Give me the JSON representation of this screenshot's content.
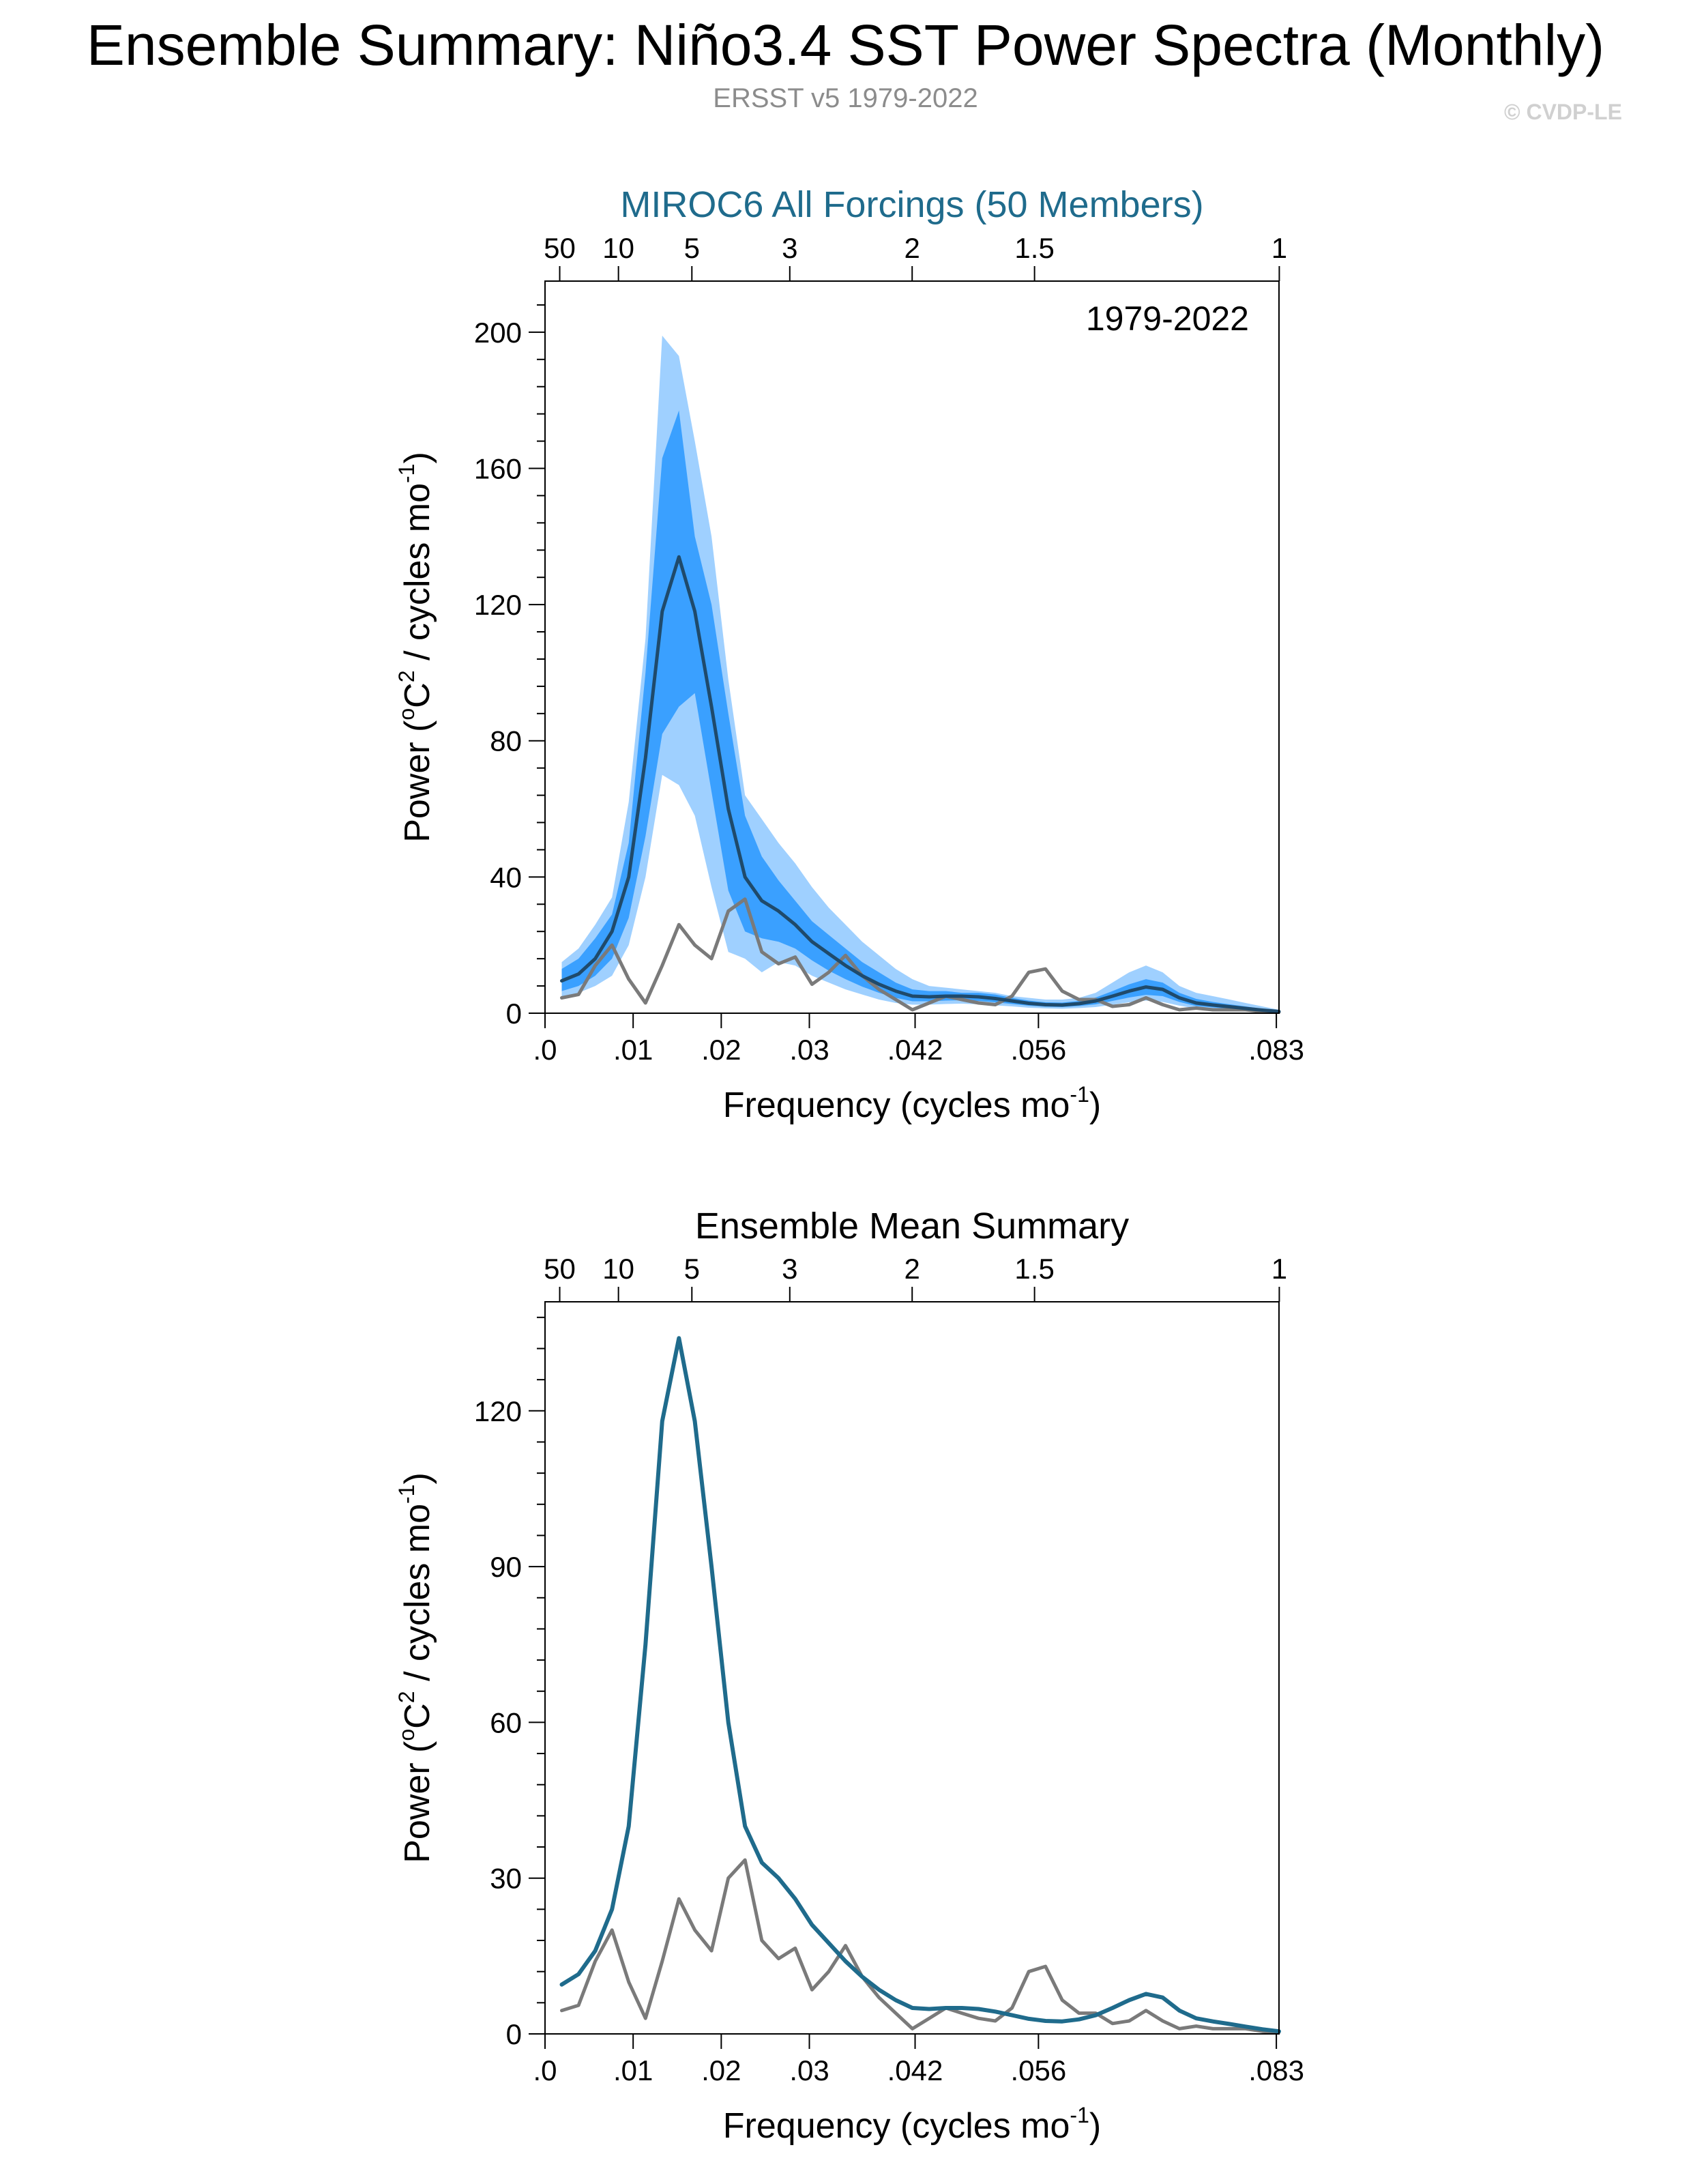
{
  "header": {
    "title": "Ensemble Summary: Niño3.4 SST Power Spectra (Monthly)",
    "subtitle": "ERSST v5 1979-2022",
    "copyright": "© CVDP-LE"
  },
  "colors": {
    "ensemble": "#1f6b8c",
    "observations": "#7a7a7a",
    "outer_band": "#9fd0ff",
    "inner_band": "#3aa0ff",
    "mean_line_panel1": "#1f4a6b"
  },
  "chart_data": [
    {
      "type": "line",
      "title": "MIROC6 All Forcings (50 Members)",
      "annotation": "1979-2022",
      "xlabel": "Frequency (cycles mo",
      "xlabel_sup": "-1",
      "xlabel_end": ")",
      "ylabel": "Power (",
      "ylabel_sup1": "o",
      "ylabel_mid": "C",
      "ylabel_sup2": "2",
      "ylabel_mid2": " / cycles mo",
      "ylabel_sup3": "-1",
      "ylabel_end": ")",
      "xlim": [
        0,
        0.0833
      ],
      "ylim": [
        0,
        215
      ],
      "yticks": [
        0,
        40,
        80,
        120,
        160,
        200
      ],
      "ytick_labels": [
        "0",
        "40",
        "80",
        "120",
        "160",
        "200"
      ],
      "xticks": [
        0,
        0.01,
        0.02,
        0.03,
        0.042,
        0.056,
        0.083
      ],
      "xtick_labels": [
        ".0",
        ".01",
        ".02",
        ".03",
        ".042",
        ".056",
        ".083"
      ],
      "top_period_labels": [
        "50",
        "10",
        "5",
        "3",
        "2",
        "1.5",
        "1"
      ],
      "top_period_years": [
        50,
        10,
        5,
        3,
        2,
        1.5,
        1
      ],
      "x": [
        0.0019,
        0.0038,
        0.0057,
        0.0076,
        0.0095,
        0.0114,
        0.0133,
        0.0152,
        0.017,
        0.0189,
        0.0208,
        0.0227,
        0.0246,
        0.0265,
        0.0284,
        0.0303,
        0.0322,
        0.0341,
        0.036,
        0.0379,
        0.0398,
        0.0417,
        0.0436,
        0.0455,
        0.0473,
        0.0492,
        0.0511,
        0.053,
        0.0549,
        0.0568,
        0.0587,
        0.0606,
        0.0625,
        0.0644,
        0.0663,
        0.0682,
        0.0701,
        0.072,
        0.0739,
        0.0758,
        0.0777,
        0.0795,
        0.0814,
        0.0833
      ],
      "series": [
        {
          "name": "ensemble_mean",
          "values": [
            9.5,
            11.5,
            16,
            24,
            40,
            75,
            118,
            134,
            118,
            90,
            60,
            40,
            33,
            30,
            26,
            21,
            17.5,
            14,
            11,
            8.5,
            6.5,
            5,
            4.8,
            5,
            5,
            4.8,
            4.3,
            3.6,
            2.9,
            2.5,
            2.4,
            2.8,
            3.6,
            5,
            6.5,
            7.7,
            7,
            4.5,
            3,
            2.4,
            1.9,
            1.4,
            0.9,
            0.5
          ]
        },
        {
          "name": "observations",
          "values": [
            4.5,
            5.5,
            14,
            20,
            10,
            3,
            14,
            26,
            20,
            16,
            30,
            33.5,
            18,
            14.5,
            16.5,
            8.5,
            12,
            17,
            11,
            7,
            4,
            1,
            3,
            5,
            4,
            3,
            2.5,
            5,
            12,
            13,
            6.5,
            4,
            4,
            2,
            2.5,
            4.5,
            2.5,
            1,
            1.5,
            1,
            1,
            1,
            0.5,
            0.3
          ]
        },
        {
          "name": "outer_upper",
          "values": [
            15,
            19,
            26,
            34,
            62,
            110,
            199,
            193,
            168,
            140,
            98,
            64,
            57,
            50,
            44,
            37,
            31,
            26,
            21,
            17,
            13,
            10,
            8,
            7.5,
            7,
            6.5,
            6,
            5,
            4.5,
            4,
            4,
            4.5,
            6,
            9,
            12,
            14,
            12,
            8,
            6,
            5,
            4,
            3,
            2,
            1
          ]
        },
        {
          "name": "inner_upper",
          "values": [
            13,
            16,
            22,
            29,
            50,
            100,
            163,
            177,
            140,
            120,
            88,
            58,
            46,
            39,
            33,
            27,
            23,
            19,
            15,
            12,
            9,
            7,
            6.5,
            6.5,
            6,
            6,
            5.5,
            4.5,
            3.7,
            3.2,
            3.1,
            3.6,
            4.6,
            6.5,
            8.5,
            10,
            9,
            6,
            4.2,
            3.3,
            2.6,
            2,
            1.3,
            0.7
          ]
        },
        {
          "name": "inner_lower",
          "values": [
            6.5,
            8,
            11,
            16,
            28,
            52,
            82,
            90,
            94,
            65,
            36,
            24,
            22,
            21,
            19,
            15.5,
            12.5,
            10,
            7.8,
            6,
            4.5,
            3.5,
            3.5,
            3.7,
            3.8,
            3.6,
            3.2,
            2.7,
            2.2,
            1.9,
            1.8,
            2.1,
            2.6,
            3.6,
            4.6,
            5.4,
            5,
            3.3,
            2.1,
            1.7,
            1.3,
            1,
            0.6,
            0.3
          ]
        },
        {
          "name": "outer_lower",
          "values": [
            4,
            6,
            8,
            11,
            20,
            40,
            70,
            67,
            58,
            37,
            18,
            16,
            12,
            15,
            14,
            11,
            9,
            7,
            5.5,
            4,
            3,
            2.5,
            2.5,
            2.7,
            2.8,
            2.6,
            2.3,
            2,
            1.6,
            1.4,
            1.3,
            1.5,
            1.8,
            2.5,
            3.2,
            3.7,
            3.3,
            2.2,
            1.4,
            1.1,
            0.9,
            0.7,
            0.4,
            0.2
          ]
        }
      ]
    },
    {
      "type": "line",
      "title": "Ensemble Mean Summary",
      "xlabel": "Frequency (cycles mo",
      "xlabel_sup": "-1",
      "xlabel_end": ")",
      "ylabel": "Power (",
      "ylabel_sup1": "o",
      "ylabel_mid": "C",
      "ylabel_sup2": "2",
      "ylabel_mid2": " / cycles mo",
      "ylabel_sup3": "-1",
      "ylabel_end": ")",
      "xlim": [
        0,
        0.0833
      ],
      "ylim": [
        0,
        141
      ],
      "yticks": [
        0,
        30,
        60,
        90,
        120
      ],
      "ytick_labels": [
        "0",
        "30",
        "60",
        "90",
        "120"
      ],
      "xticks": [
        0,
        0.01,
        0.02,
        0.03,
        0.042,
        0.056,
        0.083
      ],
      "xtick_labels": [
        ".0",
        ".01",
        ".02",
        ".03",
        ".042",
        ".056",
        ".083"
      ],
      "top_period_labels": [
        "50",
        "10",
        "5",
        "3",
        "2",
        "1.5",
        "1"
      ],
      "top_period_years": [
        50,
        10,
        5,
        3,
        2,
        1.5,
        1
      ],
      "x": [
        0.0019,
        0.0038,
        0.0057,
        0.0076,
        0.0095,
        0.0114,
        0.0133,
        0.0152,
        0.017,
        0.0189,
        0.0208,
        0.0227,
        0.0246,
        0.0265,
        0.0284,
        0.0303,
        0.0322,
        0.0341,
        0.036,
        0.0379,
        0.0398,
        0.0417,
        0.0436,
        0.0455,
        0.0473,
        0.0492,
        0.0511,
        0.053,
        0.0549,
        0.0568,
        0.0587,
        0.0606,
        0.0625,
        0.0644,
        0.0663,
        0.0682,
        0.0701,
        0.072,
        0.0739,
        0.0758,
        0.0777,
        0.0795,
        0.0814,
        0.0833
      ],
      "series": [
        {
          "name": "ensemble_mean",
          "values": [
            9.5,
            11.5,
            16,
            24,
            40,
            75,
            118,
            134,
            118,
            90,
            60,
            40,
            33,
            30,
            26,
            21,
            17.5,
            14,
            11,
            8.5,
            6.5,
            5,
            4.8,
            5,
            5,
            4.8,
            4.3,
            3.6,
            2.9,
            2.5,
            2.4,
            2.8,
            3.6,
            5,
            6.5,
            7.7,
            7,
            4.5,
            3,
            2.4,
            1.9,
            1.4,
            0.9,
            0.5
          ]
        },
        {
          "name": "observations",
          "values": [
            4.5,
            5.5,
            14,
            20,
            10,
            3,
            14,
            26,
            20,
            16,
            30,
            33.5,
            18,
            14.5,
            16.5,
            8.5,
            12,
            17,
            11,
            7,
            4,
            1,
            3,
            5,
            4,
            3,
            2.5,
            5,
            12,
            13,
            6.5,
            4,
            4,
            2,
            2.5,
            4.5,
            2.5,
            1,
            1.5,
            1,
            1,
            1,
            0.5,
            0.3
          ]
        }
      ]
    }
  ]
}
